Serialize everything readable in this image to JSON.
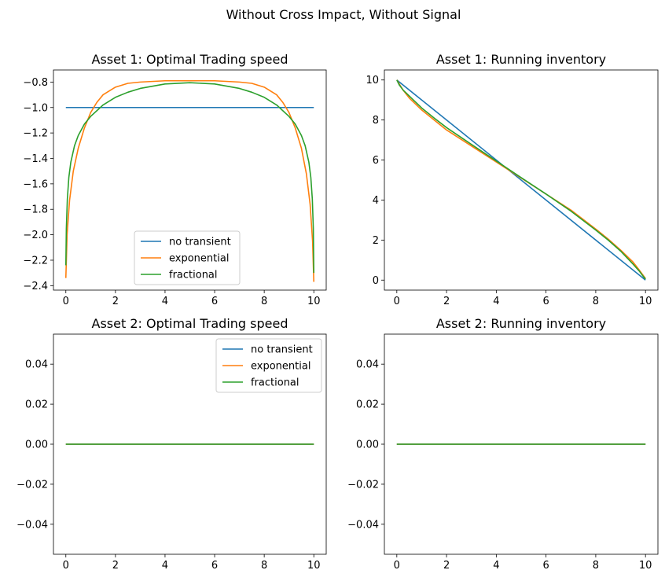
{
  "figure": {
    "suptitle": "Without Cross Impact, Without Signal"
  },
  "colors": {
    "no_transient": "#1f77b4",
    "exponential": "#ff7f0e",
    "fractional": "#2ca02c"
  },
  "chart_data": [
    {
      "type": "line",
      "title": "Asset 1: Optimal Trading speed",
      "xlabel": "",
      "ylabel": "",
      "xlim": [
        -0.5,
        10.5
      ],
      "ylim": [
        -2.435,
        -0.705
      ],
      "xticks": [
        0,
        2,
        4,
        6,
        8,
        10
      ],
      "xtick_labels": [
        "0",
        "2",
        "4",
        "6",
        "8",
        "10"
      ],
      "yticks": [
        -2.4,
        -2.2,
        -2.0,
        -1.8,
        -1.6,
        -1.4,
        -1.2,
        -1.0,
        -0.8
      ],
      "ytick_labels": [
        "−2.4",
        "−2.2",
        "−2.0",
        "−1.8",
        "−1.6",
        "−1.4",
        "−1.2",
        "−1.0",
        "−0.8"
      ],
      "legend": {
        "position": "lower-center",
        "entries": [
          "no transient",
          "exponential",
          "fractional"
        ]
      },
      "series": [
        {
          "name": "no transient",
          "color": "#1f77b4",
          "x": [
            0,
            10
          ],
          "y": [
            -1.0,
            -1.0
          ]
        },
        {
          "name": "exponential",
          "color": "#ff7f0e",
          "x": [
            0,
            0.05,
            0.15,
            0.3,
            0.5,
            0.75,
            1.0,
            1.25,
            1.5,
            2.0,
            2.5,
            3.0,
            4.0,
            5.0,
            6.0,
            7.0,
            7.5,
            8.0,
            8.5,
            8.75,
            9.0,
            9.25,
            9.5,
            9.7,
            9.85,
            9.95,
            10
          ],
          "y": [
            -2.34,
            -2.0,
            -1.73,
            -1.5,
            -1.32,
            -1.16,
            -1.04,
            -0.96,
            -0.9,
            -0.84,
            -0.81,
            -0.8,
            -0.79,
            -0.79,
            -0.79,
            -0.8,
            -0.81,
            -0.84,
            -0.9,
            -0.96,
            -1.04,
            -1.16,
            -1.32,
            -1.52,
            -1.76,
            -2.05,
            -2.37
          ]
        },
        {
          "name": "fractional",
          "color": "#2ca02c",
          "x": [
            0,
            0.02,
            0.06,
            0.12,
            0.2,
            0.35,
            0.5,
            0.75,
            1.0,
            1.5,
            2.0,
            2.5,
            3.0,
            4.0,
            5.0,
            6.0,
            7.0,
            7.5,
            8.0,
            8.5,
            9.0,
            9.25,
            9.5,
            9.65,
            9.8,
            9.88,
            9.94,
            9.98,
            10
          ],
          "y": [
            -2.24,
            -1.95,
            -1.72,
            -1.55,
            -1.43,
            -1.3,
            -1.22,
            -1.13,
            -1.07,
            -0.98,
            -0.92,
            -0.88,
            -0.85,
            -0.815,
            -0.805,
            -0.815,
            -0.85,
            -0.88,
            -0.92,
            -0.98,
            -1.07,
            -1.13,
            -1.22,
            -1.3,
            -1.43,
            -1.55,
            -1.72,
            -1.95,
            -2.3
          ]
        }
      ]
    },
    {
      "type": "line",
      "title": "Asset 1: Running inventory",
      "xlabel": "",
      "ylabel": "",
      "xlim": [
        -0.5,
        10.5
      ],
      "ylim": [
        -0.5,
        10.5
      ],
      "xticks": [
        0,
        2,
        4,
        6,
        8,
        10
      ],
      "xtick_labels": [
        "0",
        "2",
        "4",
        "6",
        "8",
        "10"
      ],
      "yticks": [
        0,
        2,
        4,
        6,
        8,
        10
      ],
      "ytick_labels": [
        "0",
        "2",
        "4",
        "6",
        "8",
        "10"
      ],
      "series": [
        {
          "name": "no transient",
          "color": "#1f77b4",
          "x": [
            0,
            10
          ],
          "y": [
            10,
            0
          ]
        },
        {
          "name": "exponential",
          "color": "#ff7f0e",
          "x": [
            0,
            0.25,
            0.5,
            1.0,
            1.5,
            2.0,
            3.0,
            4.0,
            5.0,
            6.0,
            7.0,
            8.0,
            8.5,
            9.0,
            9.5,
            9.75,
            10
          ],
          "y": [
            10,
            9.5,
            9.1,
            8.5,
            8.0,
            7.5,
            6.7,
            5.9,
            5.1,
            4.3,
            3.5,
            2.55,
            2.05,
            1.5,
            0.9,
            0.5,
            0.08
          ]
        },
        {
          "name": "fractional",
          "color": "#2ca02c",
          "x": [
            0,
            0.1,
            0.25,
            0.5,
            1.0,
            1.5,
            2.0,
            3.0,
            4.0,
            5.0,
            6.0,
            7.0,
            8.0,
            8.5,
            9.0,
            9.5,
            9.75,
            9.9,
            10
          ],
          "y": [
            10,
            9.75,
            9.5,
            9.2,
            8.6,
            8.1,
            7.62,
            6.78,
            5.95,
            5.12,
            4.3,
            3.45,
            2.5,
            2.0,
            1.45,
            0.8,
            0.45,
            0.2,
            0.05
          ]
        }
      ]
    },
    {
      "type": "line",
      "title": "Asset 2: Optimal Trading speed",
      "xlabel": "",
      "ylabel": "",
      "xlim": [
        -0.5,
        10.5
      ],
      "ylim": [
        -0.055,
        0.055
      ],
      "xticks": [
        0,
        2,
        4,
        6,
        8,
        10
      ],
      "xtick_labels": [
        "0",
        "2",
        "4",
        "6",
        "8",
        "10"
      ],
      "yticks": [
        -0.04,
        -0.02,
        0.0,
        0.02,
        0.04
      ],
      "ytick_labels": [
        "−0.04",
        "−0.02",
        "0.00",
        "0.02",
        "0.04"
      ],
      "legend": {
        "position": "top-right",
        "entries": [
          "no transient",
          "exponential",
          "fractional"
        ]
      },
      "series": [
        {
          "name": "no transient",
          "color": "#1f77b4",
          "x": [
            0,
            10
          ],
          "y": [
            0,
            0
          ]
        },
        {
          "name": "exponential",
          "color": "#ff7f0e",
          "x": [
            0,
            10
          ],
          "y": [
            0,
            0
          ]
        },
        {
          "name": "fractional",
          "color": "#2ca02c",
          "x": [
            0,
            10
          ],
          "y": [
            0,
            0
          ]
        }
      ]
    },
    {
      "type": "line",
      "title": "Asset 2: Running inventory",
      "xlabel": "",
      "ylabel": "",
      "xlim": [
        -0.5,
        10.5
      ],
      "ylim": [
        -0.055,
        0.055
      ],
      "xticks": [
        0,
        2,
        4,
        6,
        8,
        10
      ],
      "xtick_labels": [
        "0",
        "2",
        "4",
        "6",
        "8",
        "10"
      ],
      "yticks": [
        -0.04,
        -0.02,
        0.0,
        0.02,
        0.04
      ],
      "ytick_labels": [
        "−0.04",
        "−0.02",
        "0.00",
        "0.02",
        "0.04"
      ],
      "series": [
        {
          "name": "no transient",
          "color": "#1f77b4",
          "x": [
            0,
            10
          ],
          "y": [
            0,
            0
          ]
        },
        {
          "name": "exponential",
          "color": "#ff7f0e",
          "x": [
            0,
            10
          ],
          "y": [
            0,
            0
          ]
        },
        {
          "name": "fractional",
          "color": "#2ca02c",
          "x": [
            0,
            10
          ],
          "y": [
            0,
            0
          ]
        }
      ]
    }
  ]
}
